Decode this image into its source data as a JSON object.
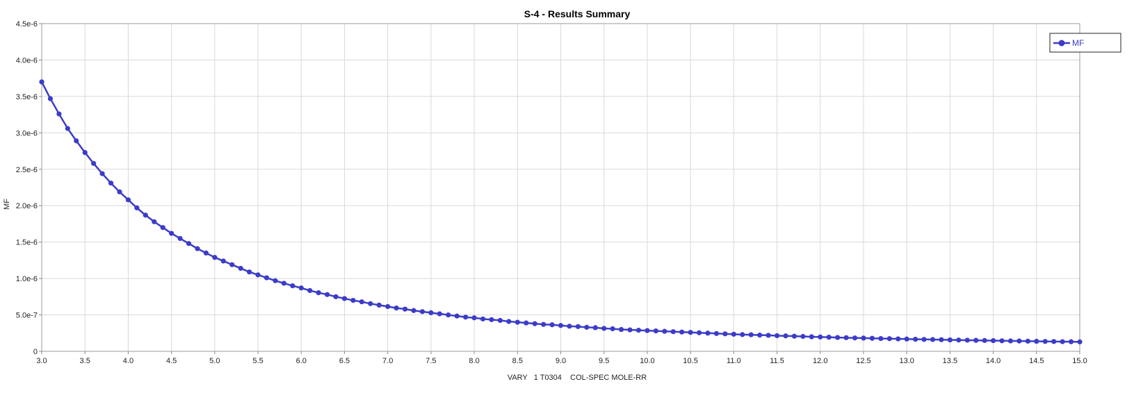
{
  "chart_data": {
    "type": "line",
    "title": "S-4 - Results Summary",
    "xlabel": "VARY   1 T0304    COL-SPEC MOLE-RR",
    "ylabel": "MF",
    "xlim": [
      3.0,
      15.0
    ],
    "ylim": [
      0,
      4.5e-06
    ],
    "x_ticks": [
      3.0,
      3.5,
      4.0,
      4.5,
      5.0,
      5.5,
      6.0,
      6.5,
      7.0,
      7.5,
      8.0,
      8.5,
      9.0,
      9.5,
      10.0,
      10.5,
      11.0,
      11.5,
      12.0,
      12.5,
      13.0,
      13.5,
      14.0,
      14.5,
      15.0
    ],
    "x_tick_labels": [
      "3.0",
      "3.5",
      "4.0",
      "4.5",
      "5.0",
      "5.5",
      "6.0",
      "6.5",
      "7.0",
      "7.5",
      "8.0",
      "8.5",
      "9.0",
      "9.5",
      "10.0",
      "10.5",
      "11.0",
      "11.5",
      "12.0",
      "12.5",
      "13.0",
      "13.5",
      "14.0",
      "14.5",
      "15.0"
    ],
    "y_ticks": [
      0,
      5e-07,
      1e-06,
      1.5e-06,
      2e-06,
      2.5e-06,
      3e-06,
      3.5e-06,
      4e-06,
      4.5e-06
    ],
    "y_tick_labels": [
      "0",
      "5.0e-7",
      "1.0e-6",
      "1.5e-6",
      "2.0e-6",
      "2.5e-6",
      "3.0e-6",
      "3.5e-6",
      "4.0e-6",
      "4.5e-6"
    ],
    "grid": true,
    "legend_position": "top-right",
    "series": [
      {
        "name": "MF",
        "color": "#3c3cc8",
        "x": [
          3.0,
          3.1,
          3.2,
          3.3,
          3.4,
          3.5,
          3.6,
          3.7,
          3.8,
          3.9,
          4.0,
          4.1,
          4.2,
          4.3,
          4.4,
          4.5,
          4.6,
          4.7,
          4.8,
          4.9,
          5.0,
          5.1,
          5.2,
          5.3,
          5.4,
          5.5,
          5.6,
          5.7,
          5.8,
          5.9,
          6.0,
          6.1,
          6.2,
          6.3,
          6.4,
          6.5,
          6.6,
          6.7,
          6.8,
          6.9,
          7.0,
          7.1,
          7.2,
          7.3,
          7.4,
          7.5,
          7.6,
          7.7,
          7.8,
          7.9,
          8.0,
          8.1,
          8.2,
          8.3,
          8.4,
          8.5,
          8.6,
          8.7,
          8.8,
          8.9,
          9.0,
          9.1,
          9.2,
          9.3,
          9.4,
          9.5,
          9.6,
          9.7,
          9.8,
          9.9,
          10.0,
          10.1,
          10.2,
          10.3,
          10.4,
          10.5,
          10.6,
          10.7,
          10.8,
          10.9,
          11.0,
          11.1,
          11.2,
          11.3,
          11.4,
          11.5,
          11.6,
          11.7,
          11.8,
          11.9,
          12.0,
          12.1,
          12.2,
          12.3,
          12.4,
          12.5,
          12.6,
          12.7,
          12.8,
          12.9,
          13.0,
          13.1,
          13.2,
          13.3,
          13.4,
          13.5,
          13.6,
          13.7,
          13.8,
          13.9,
          14.0,
          14.1,
          14.2,
          14.3,
          14.4,
          14.5,
          14.6,
          14.7,
          14.8,
          14.9,
          15.0
        ],
        "values": [
          3.7e-06,
          3.47e-06,
          3.26e-06,
          3.06e-06,
          2.89e-06,
          2.73e-06,
          2.58e-06,
          2.44e-06,
          2.31e-06,
          2.19e-06,
          2.08e-06,
          1.97e-06,
          1.87e-06,
          1.78e-06,
          1.7e-06,
          1.62e-06,
          1.55e-06,
          1.48e-06,
          1.41e-06,
          1.35e-06,
          1.29e-06,
          1.24e-06,
          1.19e-06,
          1.14e-06,
          1.09e-06,
          1.05e-06,
          1.01e-06,
          9.7e-07,
          9.35e-07,
          9e-07,
          8.7e-07,
          8.35e-07,
          8.05e-07,
          7.8e-07,
          7.5e-07,
          7.25e-07,
          7e-07,
          6.8e-07,
          6.55e-07,
          6.35e-07,
          6.15e-07,
          5.95e-07,
          5.8e-07,
          5.6e-07,
          5.45e-07,
          5.3e-07,
          5.15e-07,
          5e-07,
          4.85e-07,
          4.7e-07,
          4.6e-07,
          4.45e-07,
          4.35e-07,
          4.25e-07,
          4.1e-07,
          4e-07,
          3.9e-07,
          3.8e-07,
          3.7e-07,
          3.65e-07,
          3.55e-07,
          3.45e-07,
          3.4e-07,
          3.3e-07,
          3.25e-07,
          3.15e-07,
          3.1e-07,
          3e-07,
          2.95e-07,
          2.9e-07,
          2.85e-07,
          2.8e-07,
          2.75e-07,
          2.7e-07,
          2.65e-07,
          2.6e-07,
          2.55e-07,
          2.5e-07,
          2.45e-07,
          2.4e-07,
          2.35e-07,
          2.3e-07,
          2.28e-07,
          2.23e-07,
          2.2e-07,
          2.15e-07,
          2.12e-07,
          2.08e-07,
          2.05e-07,
          2e-07,
          1.97e-07,
          1.94e-07,
          1.9e-07,
          1.87e-07,
          1.84e-07,
          1.82e-07,
          1.79e-07,
          1.76e-07,
          1.74e-07,
          1.71e-07,
          1.69e-07,
          1.66e-07,
          1.64e-07,
          1.62e-07,
          1.6e-07,
          1.57e-07,
          1.55e-07,
          1.53e-07,
          1.51e-07,
          1.49e-07,
          1.47e-07,
          1.45e-07,
          1.43e-07,
          1.42e-07,
          1.4e-07,
          1.38e-07,
          1.36e-07,
          1.35e-07,
          1.33e-07,
          1.32e-07,
          1.3e-07
        ]
      }
    ]
  }
}
